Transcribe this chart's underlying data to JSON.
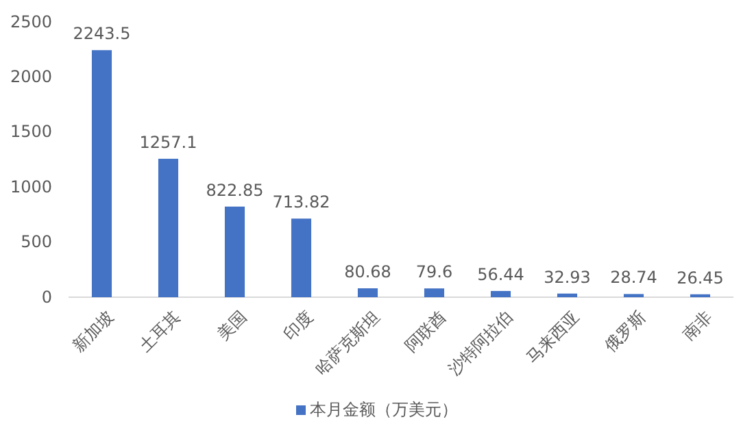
{
  "chart_data": {
    "type": "bar",
    "categories": [
      "新加坡",
      "土耳其",
      "美国",
      "印度",
      "哈萨克斯坦",
      "阿联酋",
      "沙特阿拉伯",
      "马来西亚",
      "俄罗斯",
      "南非"
    ],
    "series": [
      {
        "name": "本月金额（万美元）",
        "color": "#4472c4",
        "values": [
          2243.5,
          1257.1,
          822.85,
          713.82,
          80.68,
          79.6,
          56.44,
          32.93,
          28.74,
          26.45
        ]
      }
    ],
    "ylim": [
      0,
      2500
    ],
    "yticks": [
      0,
      500,
      1000,
      1500,
      2000,
      2500
    ],
    "grid": false,
    "data_labels": true,
    "legend": "bottom"
  }
}
